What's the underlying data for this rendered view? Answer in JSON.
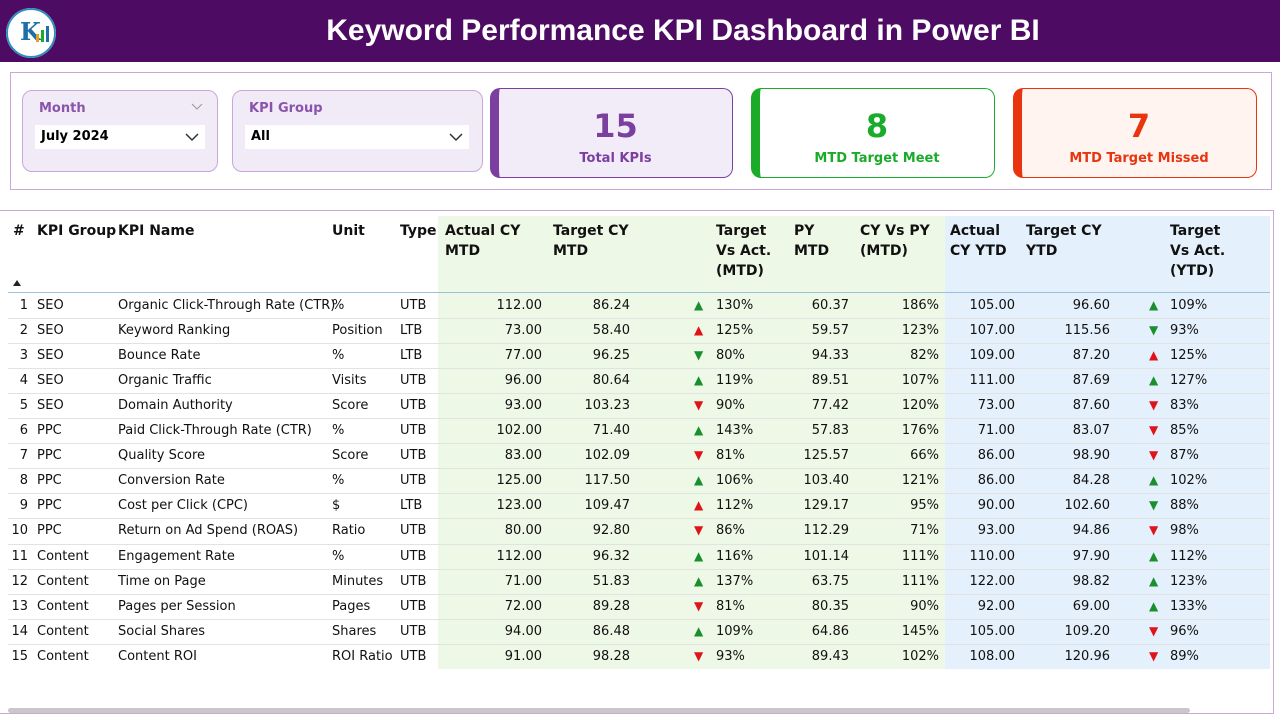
{
  "header": {
    "title": "Keyword Performance KPI Dashboard in Power BI"
  },
  "filters": [
    {
      "label": "Month",
      "value": "July 2024"
    },
    {
      "label": "KPI Group",
      "value": "All"
    }
  ],
  "cards": [
    {
      "value": 15,
      "label": "Total KPIs",
      "color": "#7b3fa0"
    },
    {
      "value": 8,
      "label": "MTD Target Meet",
      "color": "#1aab2a"
    },
    {
      "value": 7,
      "label": "MTD Target Missed",
      "color": "#e8340f"
    }
  ],
  "table": {
    "columns": [
      "#",
      "KPI Group",
      "KPI Name",
      "Unit",
      "Type",
      "Actual CY MTD",
      "Target CY MTD",
      "Target Vs Act. (MTD)",
      "PY MTD",
      "CY Vs PY (MTD)",
      "Actual CY YTD",
      "Target CY YTD",
      "Target Vs Act. (YTD)"
    ],
    "rows": [
      [
        "1",
        "SEO",
        "Organic Click-Through Rate (CTR)",
        "%",
        "UTB",
        "112.00",
        "86.24",
        "130%",
        "60.37",
        "186%",
        "105.00",
        "96.60",
        "109%"
      ],
      [
        "2",
        "SEO",
        "Keyword Ranking",
        "Position",
        "LTB",
        "73.00",
        "58.40",
        "125%",
        "59.57",
        "123%",
        "107.00",
        "115.56",
        "93%"
      ],
      [
        "3",
        "SEO",
        "Bounce Rate",
        "%",
        "LTB",
        "77.00",
        "96.25",
        "80%",
        "94.33",
        "82%",
        "109.00",
        "87.20",
        "125%"
      ],
      [
        "4",
        "SEO",
        "Organic Traffic",
        "Visits",
        "UTB",
        "96.00",
        "80.64",
        "119%",
        "89.51",
        "107%",
        "111.00",
        "87.69",
        "127%"
      ],
      [
        "5",
        "SEO",
        "Domain Authority",
        "Score",
        "UTB",
        "93.00",
        "103.23",
        "90%",
        "77.42",
        "120%",
        "73.00",
        "87.60",
        "83%"
      ],
      [
        "6",
        "PPC",
        "Paid Click-Through Rate (CTR)",
        "%",
        "UTB",
        "102.00",
        "71.40",
        "143%",
        "57.83",
        "176%",
        "71.00",
        "83.07",
        "85%"
      ],
      [
        "7",
        "PPC",
        "Quality Score",
        "Score",
        "UTB",
        "83.00",
        "102.09",
        "81%",
        "125.57",
        "66%",
        "86.00",
        "98.90",
        "87%"
      ],
      [
        "8",
        "PPC",
        "Conversion Rate",
        "%",
        "UTB",
        "125.00",
        "117.50",
        "106%",
        "103.40",
        "121%",
        "86.00",
        "84.28",
        "102%"
      ],
      [
        "9",
        "PPC",
        "Cost per Click (CPC)",
        "$",
        "LTB",
        "123.00",
        "109.47",
        "112%",
        "129.17",
        "95%",
        "90.00",
        "102.60",
        "88%"
      ],
      [
        "10",
        "PPC",
        "Return on Ad Spend (ROAS)",
        "Ratio",
        "UTB",
        "80.00",
        "92.80",
        "86%",
        "112.29",
        "71%",
        "93.00",
        "94.86",
        "98%"
      ],
      [
        "11",
        "Content",
        "Engagement Rate",
        "%",
        "UTB",
        "112.00",
        "96.32",
        "116%",
        "101.14",
        "111%",
        "110.00",
        "97.90",
        "112%"
      ],
      [
        "12",
        "Content",
        "Time on Page",
        "Minutes",
        "UTB",
        "71.00",
        "51.83",
        "137%",
        "63.75",
        "111%",
        "122.00",
        "98.82",
        "123%"
      ],
      [
        "13",
        "Content",
        "Pages per Session",
        "Pages",
        "UTB",
        "72.00",
        "89.28",
        "81%",
        "80.35",
        "90%",
        "92.00",
        "69.00",
        "133%"
      ],
      [
        "14",
        "Content",
        "Social Shares",
        "Shares",
        "UTB",
        "94.00",
        "86.48",
        "109%",
        "64.86",
        "145%",
        "105.00",
        "109.20",
        "96%"
      ],
      [
        "15",
        "Content",
        "Content ROI",
        "ROI Ratio",
        "UTB",
        "91.00",
        "98.28",
        "93%",
        "89.43",
        "102%",
        "108.00",
        "120.96",
        "89%"
      ]
    ],
    "mtd_arrows": [
      "up-good",
      "up-bad",
      "down-good",
      "up-good",
      "down-bad",
      "up-good",
      "down-bad",
      "up-good",
      "up-bad",
      "down-bad",
      "up-good",
      "up-good",
      "down-bad",
      "up-good",
      "down-bad"
    ],
    "ytd_arrows": [
      "up-good",
      "down-good",
      "up-bad",
      "up-good",
      "down-bad",
      "down-bad",
      "down-bad",
      "up-good",
      "down-good",
      "down-bad",
      "up-good",
      "up-good",
      "up-good",
      "down-bad",
      "down-bad"
    ]
  }
}
